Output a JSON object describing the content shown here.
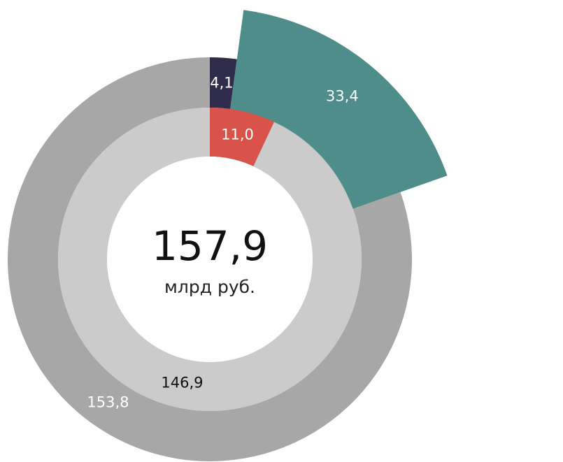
{
  "chart_data": [
    {
      "type": "donut",
      "categories": [
        null,
        null,
        null
      ],
      "values": [
        4.1,
        33.4,
        153.8
      ],
      "value_labels": [
        "4,1",
        "33,4",
        "153,8"
      ],
      "colors": [
        "#2f2c4c",
        "#4f8d8b",
        "#a7a7a7"
      ],
      "exploded": [
        false,
        true,
        false
      ]
    },
    {
      "type": "donut",
      "categories": [
        null,
        null
      ],
      "values": [
        11.0,
        146.9
      ],
      "value_labels": [
        "11,0",
        "146,9"
      ],
      "colors": [
        "#d9534b",
        "#cbcbcb"
      ],
      "exploded": [
        false,
        false
      ]
    }
  ],
  "center": {
    "value": "157,9",
    "unit": "млрд руб."
  }
}
